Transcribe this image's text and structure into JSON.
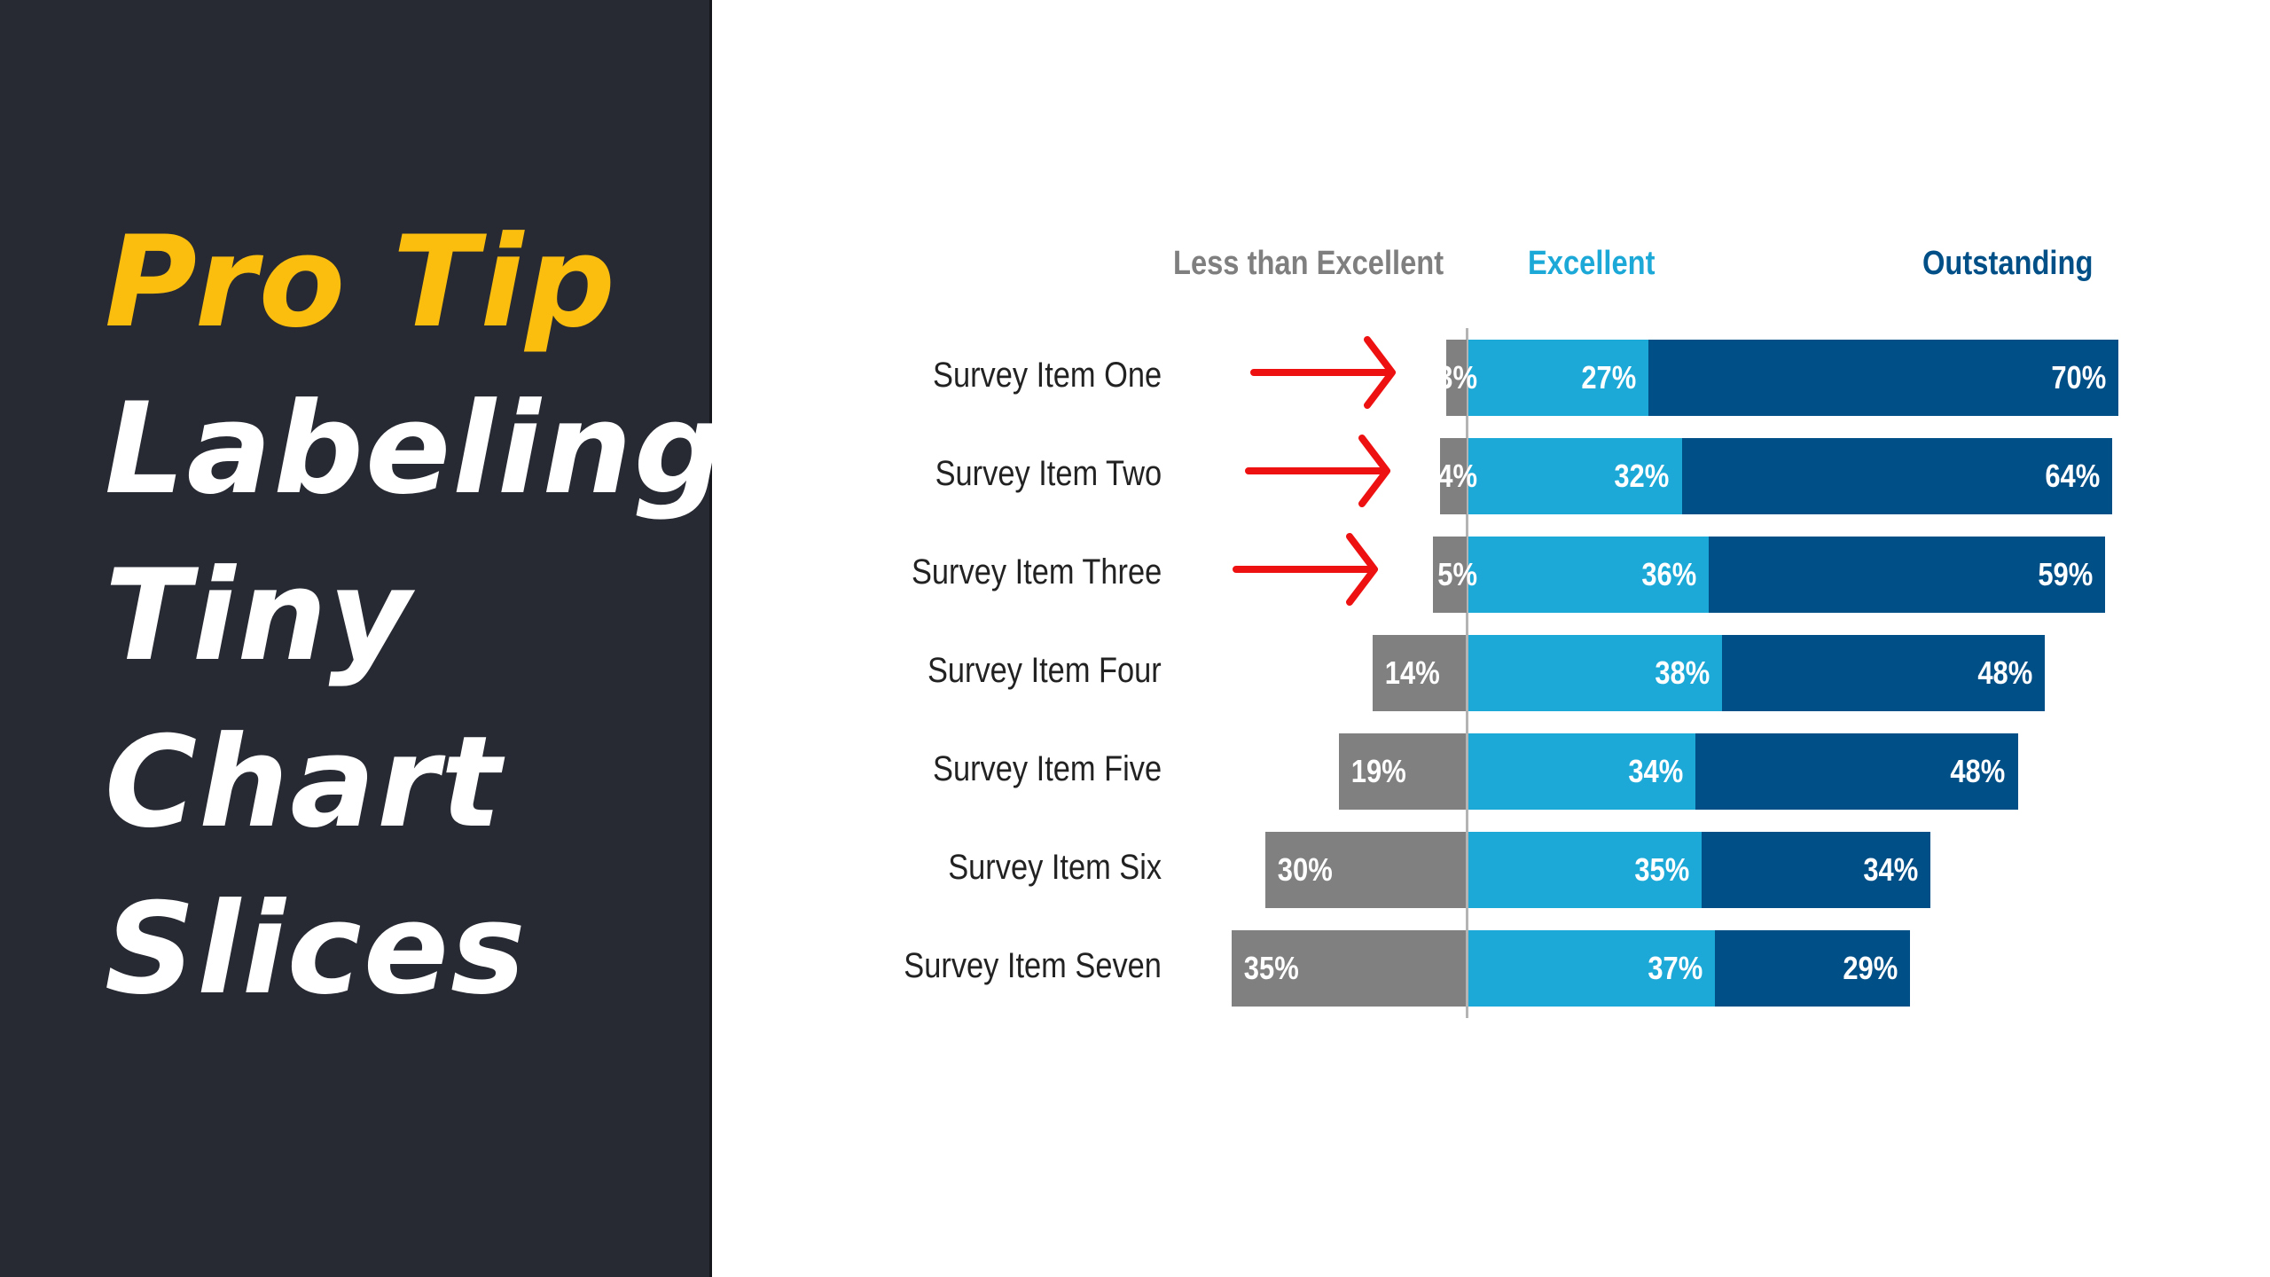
{
  "panel": {
    "title_lines": [
      "Pro Tip",
      "Labeling",
      "Tiny",
      "Chart",
      "Slices"
    ],
    "background": "#272a33",
    "accent_color": "#fbbe0f",
    "text_color": "#ffffff"
  },
  "colors": {
    "less_than_excellent": "#808080",
    "excellent": "#1da9d8",
    "outstanding": "#004f87",
    "arrow": "#ee1111",
    "axis": "#b4b4b4"
  },
  "legend": {
    "less_than_excellent": "Less than Excellent",
    "excellent": "Excellent",
    "outstanding": "Outstanding"
  },
  "rows": [
    {
      "label": "Survey Item One",
      "less": "3%",
      "excellent": "27%",
      "outstanding": "70%"
    },
    {
      "label": "Survey Item Two",
      "less": "4%",
      "excellent": "32%",
      "outstanding": "64%"
    },
    {
      "label": "Survey Item Three",
      "less": "5%",
      "excellent": "36%",
      "outstanding": "59%"
    },
    {
      "label": "Survey Item Four",
      "less": "14%",
      "excellent": "38%",
      "outstanding": "48%"
    },
    {
      "label": "Survey Item Five",
      "less": "19%",
      "excellent": "34%",
      "outstanding": "48%"
    },
    {
      "label": "Survey Item Six",
      "less": "30%",
      "excellent": "35%",
      "outstanding": "34%"
    },
    {
      "label": "Survey Item Seven",
      "less": "35%",
      "excellent": "37%",
      "outstanding": "29%"
    }
  ],
  "annotations": {
    "arrows_point_to_rows": [
      "Survey Item One",
      "Survey Item Two",
      "Survey Item Three"
    ]
  },
  "chart_data": {
    "type": "bar",
    "orientation": "horizontal",
    "stacked": true,
    "diverging": true,
    "title": "",
    "categories": [
      "Survey Item One",
      "Survey Item Two",
      "Survey Item Three",
      "Survey Item Four",
      "Survey Item Five",
      "Survey Item Six",
      "Survey Item Seven"
    ],
    "series": [
      {
        "name": "Less than Excellent",
        "color": "#808080",
        "direction": "left",
        "values": [
          3,
          4,
          5,
          14,
          19,
          30,
          35
        ]
      },
      {
        "name": "Excellent",
        "color": "#1da9d8",
        "direction": "right",
        "values": [
          27,
          32,
          36,
          38,
          34,
          35,
          37
        ]
      },
      {
        "name": "Outstanding",
        "color": "#004f87",
        "direction": "right",
        "values": [
          70,
          64,
          59,
          48,
          48,
          34,
          29
        ]
      }
    ],
    "value_format": "percent",
    "xlabel": "",
    "ylabel": "",
    "grid": false,
    "legend_position": "top (column headers above bars)",
    "annotations": [
      "Red arrows pointing at the small 'Less than Excellent' slices of items One, Two and Three"
    ]
  }
}
